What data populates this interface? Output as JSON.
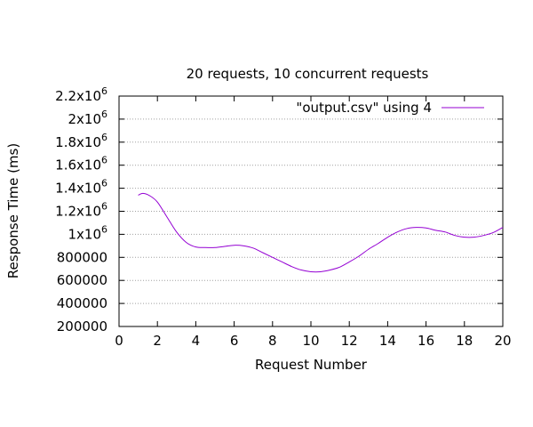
{
  "chart_data": {
    "type": "line",
    "title": "20 requests, 10 concurrent requests",
    "xlabel": "Request Number",
    "ylabel": "Response Time (ms)",
    "xlim": [
      0,
      20
    ],
    "ylim": [
      200000,
      2200000
    ],
    "xticks": [
      0,
      2,
      4,
      6,
      8,
      10,
      12,
      14,
      16,
      18,
      20
    ],
    "yticks": [
      {
        "value": 200000,
        "mant": "200000",
        "exp": ""
      },
      {
        "value": 400000,
        "mant": "400000",
        "exp": ""
      },
      {
        "value": 600000,
        "mant": "600000",
        "exp": ""
      },
      {
        "value": 800000,
        "mant": "800000",
        "exp": ""
      },
      {
        "value": 1000000,
        "mant": "1x10",
        "exp": "6"
      },
      {
        "value": 1200000,
        "mant": "1.2x10",
        "exp": "6"
      },
      {
        "value": 1400000,
        "mant": "1.4x10",
        "exp": "6"
      },
      {
        "value": 1600000,
        "mant": "1.6x10",
        "exp": "6"
      },
      {
        "value": 1800000,
        "mant": "1.8x10",
        "exp": "6"
      },
      {
        "value": 2000000,
        "mant": "2x10",
        "exp": "6"
      },
      {
        "value": 2200000,
        "mant": "2.2x10",
        "exp": "6"
      }
    ],
    "grid": true,
    "legend_position": "top-right",
    "series": [
      {
        "name": "\"output.csv\" using 4",
        "color": "#9400d3",
        "x": [
          1,
          1.25,
          1.6,
          2,
          2.5,
          3,
          3.5,
          4,
          4.5,
          5,
          5.5,
          6,
          6.5,
          7,
          7.5,
          8,
          8.5,
          9,
          9.5,
          10,
          10.5,
          11,
          11.5,
          12,
          12.5,
          13,
          13.5,
          14,
          14.5,
          15,
          15.5,
          16,
          16.5,
          17,
          17.5,
          18,
          18.5,
          19,
          19.5,
          20
        ],
        "y": [
          1340000,
          1355000,
          1335000,
          1280000,
          1150000,
          1020000,
          930000,
          890000,
          885000,
          885000,
          895000,
          905000,
          900000,
          880000,
          840000,
          800000,
          760000,
          720000,
          690000,
          675000,
          675000,
          690000,
          715000,
          760000,
          810000,
          870000,
          920000,
          975000,
          1020000,
          1050000,
          1060000,
          1055000,
          1035000,
          1020000,
          990000,
          975000,
          975000,
          990000,
          1015000,
          1060000
        ]
      }
    ]
  }
}
